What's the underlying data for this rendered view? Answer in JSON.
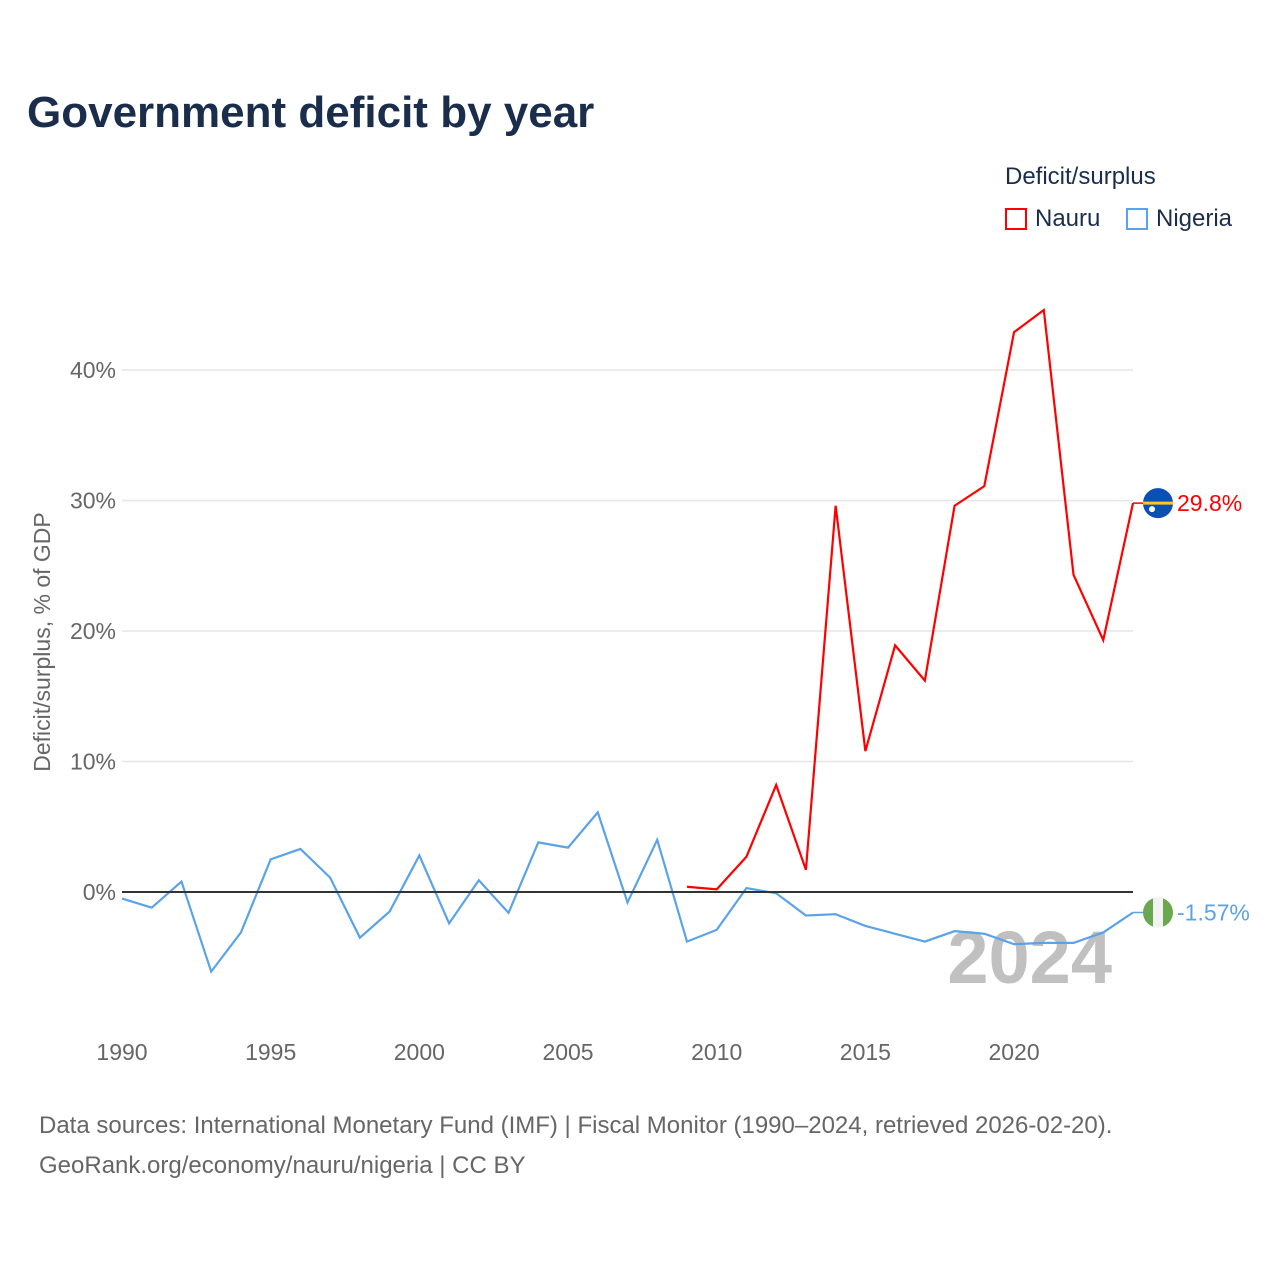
{
  "chart_data": {
    "type": "line",
    "title": "Government deficit by year",
    "ylabel": "Deficit/surplus, % of GDP",
    "xlabel": "",
    "legend_title": "Deficit/surplus",
    "legend_placement": "top-right",
    "xlim": [
      1990,
      2024
    ],
    "ylim": [
      -8,
      46
    ],
    "x_ticks": [
      1990,
      1995,
      2000,
      2005,
      2010,
      2015,
      2020
    ],
    "x_tick_labels": [
      "1990",
      "1995",
      "2000",
      "2005",
      "2010",
      "2015",
      "2020"
    ],
    "y_ticks": [
      0,
      10,
      20,
      30,
      40
    ],
    "y_tick_labels": [
      "0%",
      "10%",
      "20%",
      "30%",
      "40%"
    ],
    "grid": true,
    "year_watermark": "2024",
    "series": [
      {
        "name": "Nauru",
        "color": "#ff0000",
        "end_label": "29.8%",
        "x": [
          2009,
          2010,
          2011,
          2012,
          2013,
          2014,
          2015,
          2016,
          2017,
          2018,
          2019,
          2020,
          2021,
          2022,
          2023,
          2024
        ],
        "values": [
          0.4,
          0.2,
          2.7,
          8.2,
          1.7,
          29.6,
          10.8,
          18.9,
          16.2,
          29.6,
          31.1,
          42.9,
          44.6,
          24.3,
          19.3,
          29.8
        ]
      },
      {
        "name": "Nigeria",
        "color": "#5ba3e8",
        "end_label": "-1.57%",
        "x": [
          1990,
          1991,
          1992,
          1993,
          1994,
          1995,
          1996,
          1997,
          1998,
          1999,
          2000,
          2001,
          2002,
          2003,
          2004,
          2005,
          2006,
          2007,
          2008,
          2009,
          2010,
          2011,
          2012,
          2013,
          2014,
          2015,
          2016,
          2017,
          2018,
          2019,
          2020,
          2021,
          2022,
          2023,
          2024
        ],
        "values": [
          -0.5,
          -1.2,
          0.8,
          -6.1,
          -3.1,
          2.5,
          3.3,
          1.1,
          -3.5,
          -1.5,
          2.8,
          -2.4,
          0.9,
          -1.6,
          3.8,
          3.4,
          6.1,
          -0.8,
          4.0,
          -3.8,
          -2.9,
          0.3,
          -0.1,
          -1.8,
          -1.7,
          -2.6,
          -3.2,
          -3.8,
          -3.0,
          -3.2,
          -4.0,
          -3.9,
          -3.9,
          -3.1,
          -1.57
        ]
      }
    ]
  },
  "footer": {
    "line1": "Data sources: International Monetary Fund (IMF) | Fiscal Monitor (1990–2024, retrieved 2026-02-20).",
    "line2": "GeoRank.org/economy/nauru/nigeria | CC BY"
  }
}
